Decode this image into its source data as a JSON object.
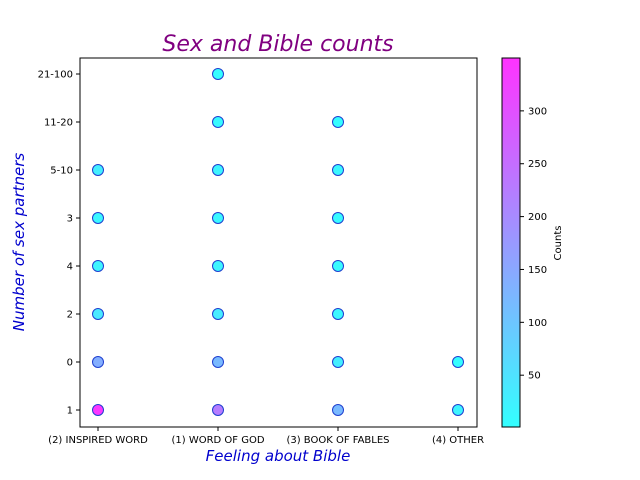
{
  "chart_data": {
    "type": "scatter",
    "title": "Sex and Bible counts",
    "xlabel": "Feeling about Bible",
    "ylabel": "Number of sex partners",
    "x_categories": [
      "(2) INSPIRED WORD",
      "(1) WORD OF GOD",
      "(3) BOOK OF FABLES",
      "(4) OTHER"
    ],
    "y_categories": [
      "1",
      "0",
      "2",
      "4",
      "3",
      "5-10",
      "11-20",
      "21-100"
    ],
    "points": [
      {
        "x": "(2) INSPIRED WORD",
        "y": "1",
        "count": 345
      },
      {
        "x": "(2) INSPIRED WORD",
        "y": "0",
        "count": 140
      },
      {
        "x": "(2) INSPIRED WORD",
        "y": "2",
        "count": 40
      },
      {
        "x": "(2) INSPIRED WORD",
        "y": "4",
        "count": 20
      },
      {
        "x": "(2) INSPIRED WORD",
        "y": "3",
        "count": 15
      },
      {
        "x": "(2) INSPIRED WORD",
        "y": "5-10",
        "count": 30
      },
      {
        "x": "(1) WORD OF GOD",
        "y": "1",
        "count": 225
      },
      {
        "x": "(1) WORD OF GOD",
        "y": "0",
        "count": 120
      },
      {
        "x": "(1) WORD OF GOD",
        "y": "2",
        "count": 35
      },
      {
        "x": "(1) WORD OF GOD",
        "y": "4",
        "count": 20
      },
      {
        "x": "(1) WORD OF GOD",
        "y": "3",
        "count": 15
      },
      {
        "x": "(1) WORD OF GOD",
        "y": "5-10",
        "count": 20
      },
      {
        "x": "(1) WORD OF GOD",
        "y": "11-20",
        "count": 10
      },
      {
        "x": "(1) WORD OF GOD",
        "y": "21-100",
        "count": 5
      },
      {
        "x": "(3) BOOK OF FABLES",
        "y": "1",
        "count": 120
      },
      {
        "x": "(3) BOOK OF FABLES",
        "y": "0",
        "count": 30
      },
      {
        "x": "(3) BOOK OF FABLES",
        "y": "2",
        "count": 15
      },
      {
        "x": "(3) BOOK OF FABLES",
        "y": "4",
        "count": 10
      },
      {
        "x": "(3) BOOK OF FABLES",
        "y": "3",
        "count": 10
      },
      {
        "x": "(3) BOOK OF FABLES",
        "y": "5-10",
        "count": 15
      },
      {
        "x": "(3) BOOK OF FABLES",
        "y": "11-20",
        "count": 5
      },
      {
        "x": "(4) OTHER",
        "y": "1",
        "count": 20
      },
      {
        "x": "(4) OTHER",
        "y": "0",
        "count": 5
      }
    ],
    "colorbar": {
      "label": "Counts",
      "min": 1,
      "max": 350,
      "ticks": [
        50,
        100,
        150,
        200,
        250,
        300
      ],
      "colormap": "cool",
      "color_low": "#33ffff",
      "color_high": "#ff33ff"
    },
    "colors": {
      "title": "#800080",
      "axis_title": "#0000cd",
      "marker_edge": "#1f3fcf"
    },
    "grid": false,
    "legend": "none"
  }
}
